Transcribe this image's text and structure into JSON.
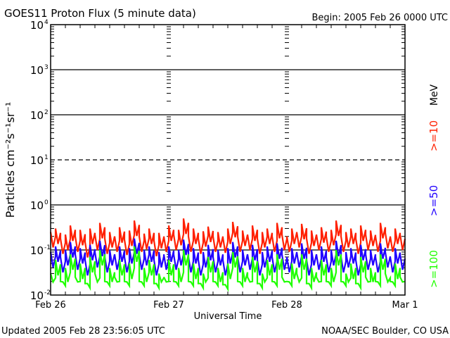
{
  "chart_data": {
    "type": "line",
    "title": "GOES11 Proton Flux (5 minute data)",
    "subtitle": "Begin: 2005 Feb 26 0000 UTC",
    "xlabel": "Universal Time",
    "ylabel": "Particles cm⁻²s⁻¹sr⁻¹",
    "footer_left": "Updated 2005 Feb 28 23:56:05 UTC",
    "footer_right": "NOAA/SEC Boulder, CO USA",
    "x_tick_labels": [
      "Feb 26",
      "Feb 27",
      "Feb 28",
      "Mar 1"
    ],
    "x_unit": "hours since begin (hourly samples)",
    "xlim": [
      0,
      72
    ],
    "y_scale": "log",
    "ylim": [
      0.01,
      10000
    ],
    "y_tick_exponents": [
      "4",
      "3",
      "2",
      "1",
      "0",
      "-1",
      "-2"
    ],
    "unit_label": "MeV",
    "series": [
      {
        "name": ">=10",
        "color": "#ff2000",
        "values": [
          0.25,
          0.3,
          0.18,
          0.22,
          0.35,
          0.2,
          0.28,
          0.15,
          0.3,
          0.22,
          0.4,
          0.18,
          0.25,
          0.2,
          0.32,
          0.17,
          0.27,
          0.45,
          0.2,
          0.23,
          0.3,
          0.16,
          0.24,
          0.2,
          0.35,
          0.22,
          0.28,
          0.5,
          0.2,
          0.3,
          0.18,
          0.26,
          0.33,
          0.2,
          0.25,
          0.19,
          0.3,
          0.42,
          0.2,
          0.27,
          0.22,
          0.35,
          0.18,
          0.25,
          0.3,
          0.2,
          0.4,
          0.22,
          0.2,
          0.3,
          0.25,
          0.38,
          0.18,
          0.27,
          0.22,
          0.32,
          0.2,
          0.28,
          0.45,
          0.2,
          0.25,
          0.3,
          0.18,
          0.35,
          0.22,
          0.27,
          0.2,
          0.4,
          0.24,
          0.2,
          0.3,
          0.22
        ]
      },
      {
        "name": ">=50",
        "color": "#2000ff",
        "values": [
          0.09,
          0.12,
          0.07,
          0.1,
          0.15,
          0.08,
          0.11,
          0.06,
          0.13,
          0.09,
          0.16,
          0.07,
          0.1,
          0.08,
          0.12,
          0.07,
          0.11,
          0.18,
          0.08,
          0.1,
          0.12,
          0.06,
          0.09,
          0.08,
          0.12,
          0.08,
          0.1,
          0.17,
          0.07,
          0.11,
          0.06,
          0.09,
          0.13,
          0.07,
          0.1,
          0.06,
          0.11,
          0.15,
          0.07,
          0.1,
          0.08,
          0.13,
          0.06,
          0.09,
          0.12,
          0.07,
          0.14,
          0.08,
          0.07,
          0.11,
          0.09,
          0.14,
          0.06,
          0.1,
          0.08,
          0.12,
          0.07,
          0.1,
          0.16,
          0.07,
          0.09,
          0.11,
          0.06,
          0.13,
          0.08,
          0.1,
          0.07,
          0.14,
          0.09,
          0.07,
          0.11,
          0.08
        ]
      },
      {
        "name": ">=100",
        "color": "#20ff00",
        "values": [
          0.03,
          0.06,
          0.02,
          0.04,
          0.08,
          0.025,
          0.05,
          0.018,
          0.07,
          0.03,
          0.1,
          0.02,
          0.04,
          0.025,
          0.06,
          0.02,
          0.05,
          0.12,
          0.02,
          0.04,
          0.06,
          0.018,
          0.03,
          0.025,
          0.06,
          0.02,
          0.04,
          0.1,
          0.02,
          0.05,
          0.018,
          0.03,
          0.07,
          0.02,
          0.04,
          0.017,
          0.05,
          0.09,
          0.02,
          0.04,
          0.025,
          0.07,
          0.018,
          0.03,
          0.06,
          0.02,
          0.08,
          0.025,
          0.02,
          0.05,
          0.03,
          0.08,
          0.018,
          0.04,
          0.025,
          0.06,
          0.02,
          0.04,
          0.1,
          0.02,
          0.03,
          0.05,
          0.018,
          0.07,
          0.025,
          0.04,
          0.02,
          0.08,
          0.03,
          0.02,
          0.05,
          0.025
        ]
      }
    ]
  }
}
